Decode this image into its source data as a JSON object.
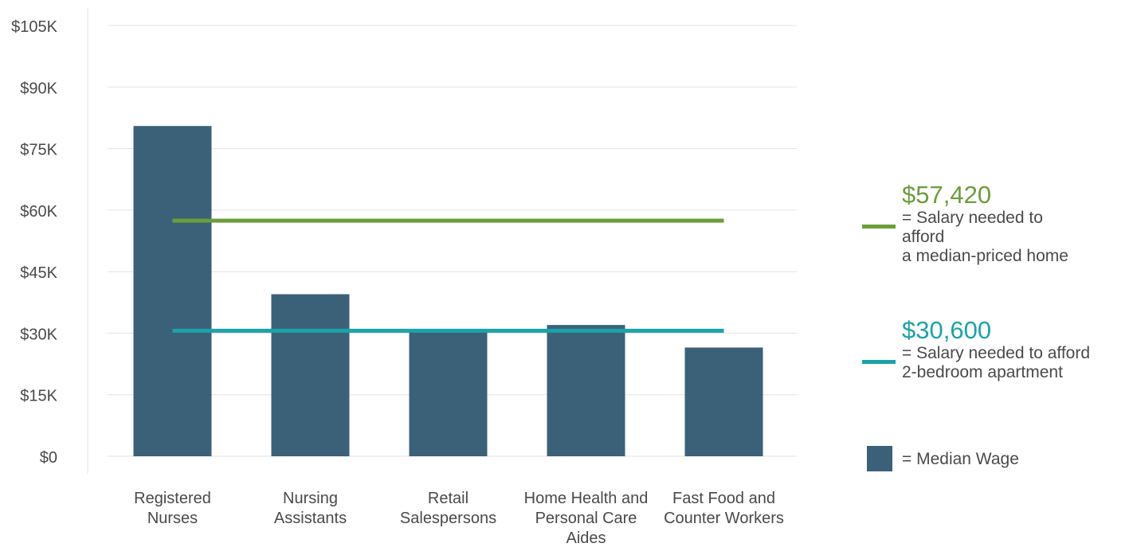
{
  "chart_data": {
    "type": "bar",
    "categories": [
      [
        "Registered",
        "Nurses"
      ],
      [
        "Nursing",
        "Assistants"
      ],
      [
        "Retail",
        "Salespersons"
      ],
      [
        "Home Health and",
        "Personal Care",
        "Aides"
      ],
      [
        "Fast Food and",
        "Counter Workers"
      ]
    ],
    "values": [
      80500,
      39500,
      31000,
      32000,
      26500
    ],
    "y_ticks": [
      0,
      15000,
      30000,
      45000,
      60000,
      75000,
      90000,
      105000
    ],
    "y_tick_labels": [
      "$0",
      "$15K",
      "$30K",
      "$45K",
      "$60K",
      "$75K",
      "$90K",
      "$105K"
    ],
    "ylim": [
      0,
      105000
    ],
    "grid": true,
    "reference_lines": [
      {
        "value": 57420,
        "color": "#6a9e3a"
      },
      {
        "value": 30600,
        "color": "#1ba3a8"
      }
    ],
    "bar_color": "#3b6179",
    "legend_placement": "right"
  },
  "legend": {
    "home": {
      "value": "$57,420",
      "desc_lines": [
        "= Salary needed to",
        "afford",
        "a median-priced home"
      ],
      "color": "#6a9e3a"
    },
    "apartment": {
      "value": "$30,600",
      "desc_lines": [
        "= Salary needed to afford",
        "2-bedroom apartment"
      ],
      "color": "#1ba3a8"
    },
    "wage": {
      "desc": "= Median Wage",
      "color": "#3b6179"
    }
  }
}
